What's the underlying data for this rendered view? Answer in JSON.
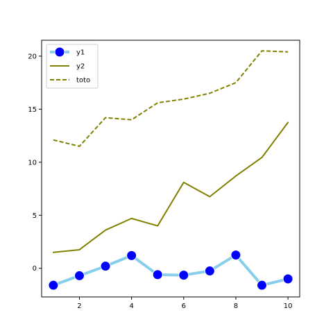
{
  "chart_data": {
    "type": "line",
    "x": [
      1,
      2,
      3,
      4,
      5,
      6,
      7,
      8,
      9,
      10
    ],
    "xlim": [
      0.55,
      10.45
    ],
    "ylim": [
      -2.7,
      21.5
    ],
    "xticks": [
      2,
      4,
      6,
      8,
      10
    ],
    "yticks": [
      0,
      5,
      10,
      15,
      20
    ],
    "grid": false,
    "legend_position": "upper-left",
    "series": [
      {
        "name": "y1",
        "values": [
          -1.6,
          -0.7,
          0.2,
          1.2,
          -0.6,
          -0.65,
          -0.25,
          1.25,
          -1.6,
          -1.0
        ],
        "line_color": "#87ceeb",
        "marker_color": "#0000ff",
        "marker_edge_color": "#ffffff",
        "line_style": "solid",
        "marker": "circle"
      },
      {
        "name": "y2",
        "values": [
          1.5,
          1.75,
          3.6,
          4.7,
          4.0,
          8.1,
          6.75,
          8.7,
          10.45,
          13.75
        ],
        "line_color": "#808000",
        "line_style": "solid",
        "marker": "none"
      },
      {
        "name": "toto",
        "values": [
          12.1,
          11.5,
          14.2,
          14.0,
          15.6,
          15.95,
          16.5,
          17.5,
          20.5,
          20.4
        ],
        "line_color": "#808000",
        "line_style": "dashed",
        "marker": "none"
      }
    ]
  }
}
